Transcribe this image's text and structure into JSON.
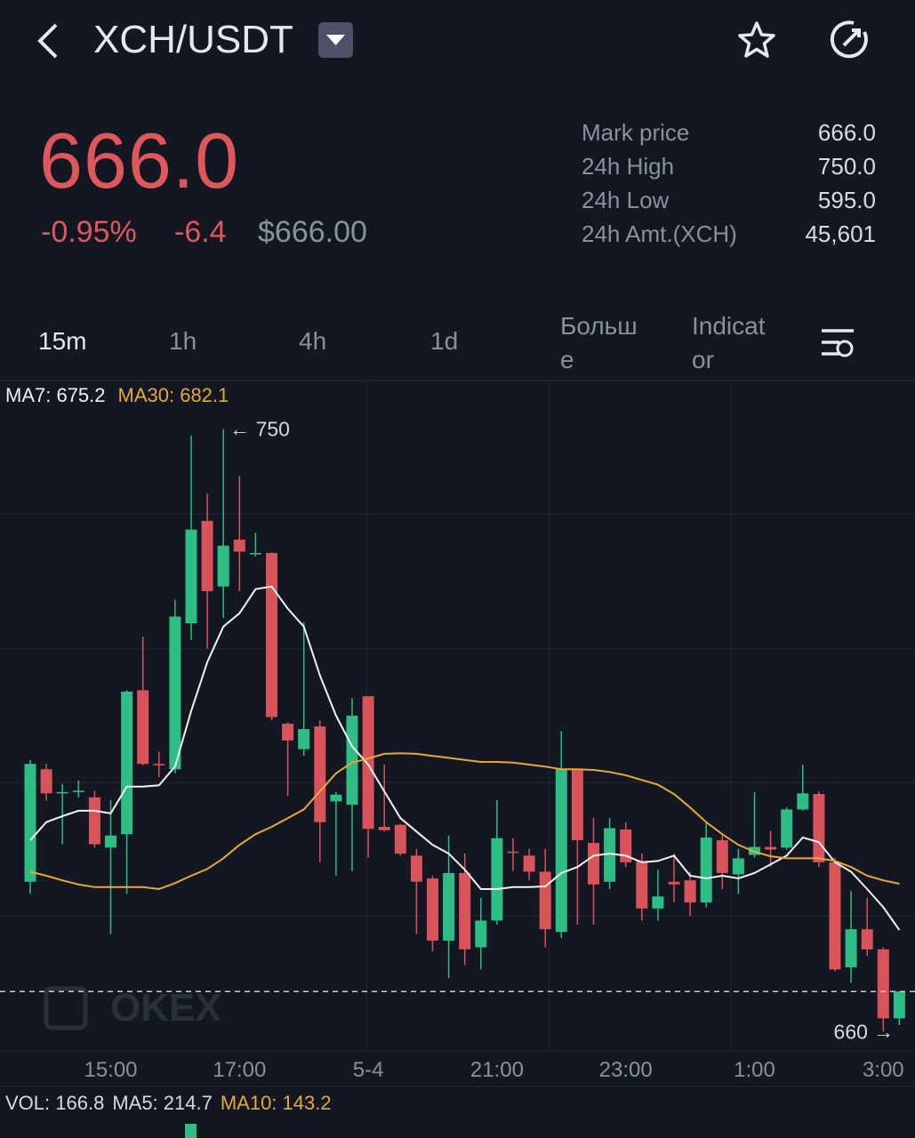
{
  "header": {
    "pair": "XCH/USDT"
  },
  "price": {
    "last": "666.0",
    "change_pct": "-0.95%",
    "change": "-6.4",
    "usd": "$666.00"
  },
  "stats": [
    {
      "label": "Mark price",
      "value": "666.0"
    },
    {
      "label": "24h High",
      "value": "750.0"
    },
    {
      "label": "24h Low",
      "value": "595.0"
    },
    {
      "label": "24h Amt.(XCH)",
      "value": "45,601"
    }
  ],
  "tabs": [
    "15m",
    "1h",
    "4h",
    "1d",
    "Больше",
    "Indicator"
  ],
  "watermark": "OKEX",
  "volume_legend": [
    {
      "text": "VOL: 166.8",
      "color": "#d6d9e0"
    },
    {
      "text": "MA5: 214.7",
      "color": "#d6d9e0"
    },
    {
      "text": "MA10: 143.2",
      "color": "#e8a838"
    }
  ],
  "chart_data": {
    "type": "candlestick",
    "categories": [
      null,
      null,
      null,
      null,
      null,
      "15:00",
      null,
      null,
      null,
      null,
      null,
      null,
      null,
      "17:00",
      null,
      null,
      null,
      null,
      null,
      null,
      null,
      "5-4",
      null,
      null,
      null,
      null,
      null,
      null,
      null,
      "21:00",
      null,
      null,
      null,
      null,
      null,
      null,
      null,
      "23:00",
      null,
      null,
      null,
      null,
      null,
      null,
      null,
      "1:00",
      null,
      null,
      null,
      null,
      null,
      null,
      null,
      "3:00",
      null
    ],
    "open": [
      682.4,
      699.2,
      695.6,
      696,
      695,
      687.5,
      689.5,
      711,
      700,
      699.2,
      721,
      736.3,
      726.5,
      733.5,
      731.5,
      731.5,
      706,
      702.2,
      705.6,
      694.4,
      693.9,
      710.1,
      690.6,
      690.9,
      686.3,
      682.9,
      673.6,
      683.7,
      672.6,
      676.6,
      686.9,
      686.3,
      683.9,
      674.9,
      699.1,
      688.2,
      682.4,
      690.2,
      685.5,
      678.4,
      682.4,
      682.6,
      679.3,
      688.6,
      683.5,
      686.4,
      687.6,
      687.5,
      693.2,
      695.5,
      685.3,
      669.6,
      675.3,
      672.3,
      662
    ],
    "high": [
      700.6,
      700,
      697,
      697.5,
      696,
      694.6,
      711,
      719,
      701.8,
      724.5,
      749,
      740.4,
      750,
      743,
      734.5,
      731.6,
      706.2,
      721.2,
      706.5,
      695.8,
      709.8,
      710.1,
      699.9,
      691,
      687.3,
      683.3,
      689.3,
      686.6,
      680,
      694.6,
      688.9,
      687.3,
      687.3,
      704.9,
      699.2,
      691.9,
      691.9,
      691.3,
      686.6,
      684.2,
      686.6,
      683.9,
      691.3,
      689.3,
      687.3,
      695.8,
      690,
      693.5,
      699.9,
      695.9,
      686,
      681,
      680,
      672.6,
      666
    ],
    "low": [
      680.6,
      694.5,
      688,
      695,
      687.5,
      674.6,
      680.6,
      699.8,
      698,
      698.6,
      718.5,
      717.2,
      721.8,
      725.8,
      731,
      706.5,
      695.2,
      701.2,
      685.3,
      683.3,
      684,
      686,
      689.9,
      686.3,
      674.6,
      672,
      668,
      670,
      669.3,
      676,
      684,
      682.6,
      672.6,
      674,
      676,
      676,
      681.3,
      684.6,
      676.6,
      676.6,
      679.3,
      677.3,
      678.6,
      681.3,
      680.6,
      686,
      684.6,
      687.2,
      693,
      684.6,
      669,
      667.3,
      671.3,
      660,
      661
    ],
    "close": [
      700,
      695.6,
      695.8,
      696,
      688,
      689.3,
      710.8,
      700,
      699.8,
      722,
      735,
      725.8,
      732.6,
      731.7,
      731.5,
      707,
      703.5,
      705.2,
      691.3,
      695.4,
      707.2,
      690.3,
      690.1,
      686.6,
      682.4,
      673.6,
      683.7,
      672.3,
      676.6,
      688.9,
      686.7,
      683.9,
      675.3,
      699.2,
      688.6,
      682,
      690.4,
      685.3,
      678.4,
      680.2,
      682,
      679.3,
      689,
      683.7,
      685.9,
      687.6,
      687.2,
      693.2,
      695.6,
      685.3,
      669.3,
      675.3,
      672.3,
      662,
      666
    ],
    "up_color": "#2ebd85",
    "down_color": "#d9535a",
    "series": [
      {
        "name": "MA7: 675.2",
        "color": "#f2f2f2",
        "values": [
          688.6,
          691.3,
          692.2,
          693,
          693,
          692.6,
          696.6,
          696.6,
          696.8,
          699.6,
          707.9,
          715.2,
          720.5,
          722.5,
          726.1,
          726.5,
          723.2,
          720.5,
          713.2,
          707.2,
          702.6,
          699.9,
          695.9,
          691.9,
          689.9,
          687.9,
          686.6,
          684.2,
          681.3,
          681.3,
          681.6,
          681.6,
          681.7,
          683.7,
          684.6,
          686.3,
          686.6,
          686.3,
          685.3,
          685.5,
          686.3,
          683.3,
          682.9,
          683.3,
          682.9,
          683.7,
          685,
          686.3,
          689,
          688.3,
          685.3,
          683.9,
          681.3,
          678.6,
          675.2
        ]
      },
      {
        "name": "MA30: 682.1",
        "color": "#e8a838",
        "values": [
          683.9,
          683.3,
          682.6,
          682,
          681.6,
          681.6,
          681.6,
          681.6,
          681.3,
          682.2,
          683.3,
          684.3,
          685.9,
          687.9,
          689.5,
          690.6,
          691.9,
          693.2,
          695.9,
          698.6,
          700.2,
          700.8,
          701.5,
          701.6,
          701.5,
          701.2,
          700.9,
          700.6,
          700.3,
          700.3,
          700.2,
          699.9,
          699.6,
          699.2,
          699.2,
          699.1,
          698.8,
          698.3,
          697.6,
          696.9,
          695.5,
          693.5,
          691.3,
          689.5,
          687.9,
          686.9,
          686.2,
          685.9,
          685.9,
          685.9,
          685.5,
          684.6,
          683.3,
          682.6,
          682.1
        ]
      }
    ],
    "price_line": 666,
    "annotations": [
      {
        "text": "← 750",
        "value": 750
      },
      {
        "text": "660 →",
        "value": 660
      }
    ],
    "ylim": [
      657.4,
      757
    ]
  }
}
